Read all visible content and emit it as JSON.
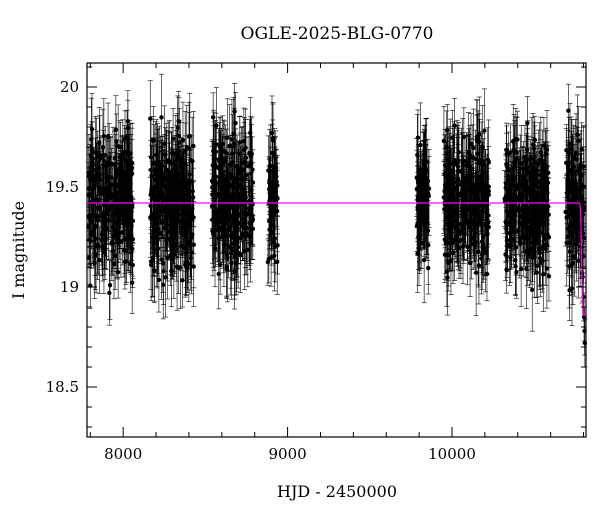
{
  "chart_data": {
    "type": "scatter",
    "title": "OGLE-2025-BLG-0770",
    "xlabel": "HJD - 2450000",
    "ylabel": "I magnitude",
    "xlim": [
      7780,
      10815
    ],
    "ylim": [
      20.12,
      18.25
    ],
    "y_inverted": true,
    "grid": false,
    "x_ticks": [
      8000,
      9000,
      10000
    ],
    "x_tick_labels": [
      "8000",
      "9000",
      "10000"
    ],
    "y_ticks": [
      18.5,
      19,
      19.5,
      20
    ],
    "y_tick_labels": [
      "18.5",
      "19",
      "19.5",
      "20"
    ],
    "point_color": "#000000",
    "model_color": "#ff00ff",
    "observing_seasons": [
      {
        "x_start": 7790,
        "x_end": 8060,
        "mean_mag": 19.42,
        "scatter": 0.15,
        "error": 0.16
      },
      {
        "x_start": 8160,
        "x_end": 8430,
        "mean_mag": 19.43,
        "scatter": 0.16,
        "error": 0.17
      },
      {
        "x_start": 8540,
        "x_end": 8790,
        "mean_mag": 19.43,
        "scatter": 0.16,
        "error": 0.17
      },
      {
        "x_start": 8880,
        "x_end": 8940,
        "mean_mag": 19.42,
        "scatter": 0.15,
        "error": 0.16
      },
      {
        "x_start": 9785,
        "x_end": 9860,
        "mean_mag": 19.43,
        "scatter": 0.16,
        "error": 0.17
      },
      {
        "x_start": 9950,
        "x_end": 10225,
        "mean_mag": 19.43,
        "scatter": 0.16,
        "error": 0.17
      },
      {
        "x_start": 10320,
        "x_end": 10590,
        "mean_mag": 19.42,
        "scatter": 0.15,
        "error": 0.16
      },
      {
        "x_start": 10690,
        "x_end": 10805,
        "mean_mag": 19.43,
        "scatter": 0.16,
        "error": 0.17
      }
    ],
    "rising_points": [
      {
        "x": 10790,
        "y": 19.2
      },
      {
        "x": 10795,
        "y": 19.05
      },
      {
        "x": 10800,
        "y": 18.95
      },
      {
        "x": 10803,
        "y": 18.85
      },
      {
        "x": 10806,
        "y": 18.78
      },
      {
        "x": 10808,
        "y": 18.72
      }
    ],
    "model_curve": [
      {
        "x": 7780,
        "y": 19.42
      },
      {
        "x": 10775,
        "y": 19.42
      },
      {
        "x": 10780,
        "y": 19.41
      },
      {
        "x": 10784,
        "y": 19.32
      },
      {
        "x": 10787,
        "y": 19.2
      },
      {
        "x": 10790,
        "y": 19.05
      },
      {
        "x": 10793,
        "y": 18.95
      },
      {
        "x": 10796,
        "y": 18.86
      }
    ]
  }
}
